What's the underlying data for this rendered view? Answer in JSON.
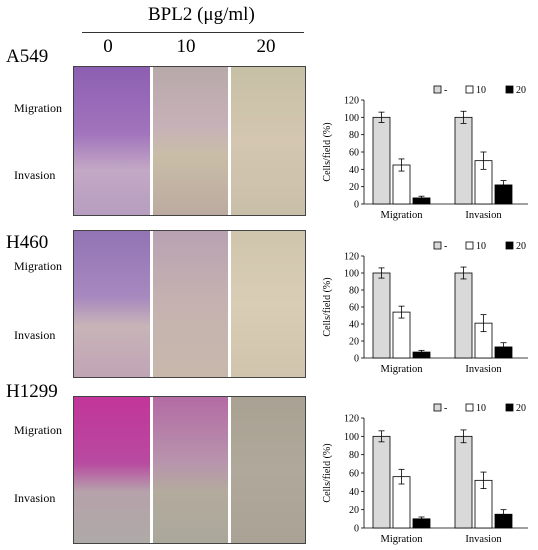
{
  "header": {
    "title": "BPL2 (μg/ml)",
    "doses": [
      "0",
      "10",
      "20"
    ]
  },
  "row_labels": [
    "Migration",
    "Invasion"
  ],
  "panels": [
    {
      "cell_line": "A549"
    },
    {
      "cell_line": "H460"
    },
    {
      "cell_line": "H1299"
    }
  ],
  "colors": {
    "control": "#d9d9d9",
    "dose10": "#ffffff",
    "dose20": "#000000",
    "stain": "#8e3fb0",
    "stain_pink": "#c2359a"
  },
  "chart_data": [
    {
      "type": "bar",
      "title": "A549",
      "categories": [
        "Migration",
        "Invasion"
      ],
      "series": [
        {
          "name": "-",
          "values": [
            100,
            100
          ],
          "errors": [
            6,
            7
          ]
        },
        {
          "name": "10",
          "values": [
            45,
            50
          ],
          "errors": [
            7,
            10
          ]
        },
        {
          "name": "20",
          "values": [
            7,
            22
          ],
          "errors": [
            2,
            5
          ]
        }
      ],
      "ylabel": "Cells/field (%)",
      "ylim": [
        0,
        120
      ],
      "yticks": [
        0,
        20,
        40,
        60,
        80,
        100,
        120
      ],
      "legend": "top-right"
    },
    {
      "type": "bar",
      "title": "H460",
      "categories": [
        "Migration",
        "Invasion"
      ],
      "series": [
        {
          "name": "-",
          "values": [
            100,
            100
          ],
          "errors": [
            6,
            7
          ]
        },
        {
          "name": "10",
          "values": [
            54,
            41
          ],
          "errors": [
            7,
            10
          ]
        },
        {
          "name": "20",
          "values": [
            7,
            13
          ],
          "errors": [
            2,
            5
          ]
        }
      ],
      "ylabel": "Cells/field (%)",
      "ylim": [
        0,
        120
      ],
      "yticks": [
        0,
        20,
        40,
        60,
        80,
        100,
        120
      ],
      "legend": "top-right"
    },
    {
      "type": "bar",
      "title": "H1299",
      "categories": [
        "Migration",
        "Invasion"
      ],
      "series": [
        {
          "name": "-",
          "values": [
            100,
            100
          ],
          "errors": [
            6,
            7
          ]
        },
        {
          "name": "10",
          "values": [
            56,
            52
          ],
          "errors": [
            8,
            9
          ]
        },
        {
          "name": "20",
          "values": [
            10,
            15
          ],
          "errors": [
            2,
            5
          ]
        }
      ],
      "ylabel": "Cells/field (%)",
      "ylim": [
        0,
        120
      ],
      "yticks": [
        0,
        20,
        40,
        60,
        80,
        100,
        120
      ],
      "legend": "top-right"
    }
  ]
}
